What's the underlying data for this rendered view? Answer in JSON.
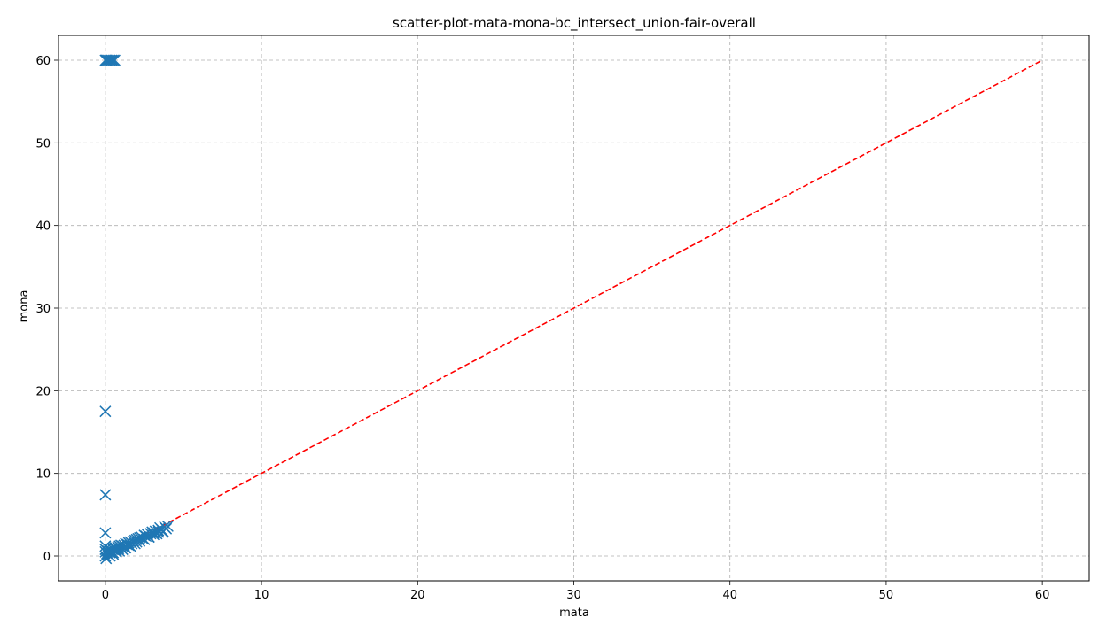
{
  "chart_data": {
    "type": "scatter",
    "title": "scatter-plot-mata-mona-bc_intersect_union-fair-overall",
    "xlabel": "mata",
    "ylabel": "mona",
    "xlim": [
      -3,
      63
    ],
    "ylim": [
      -3,
      63
    ],
    "xticks": [
      0,
      10,
      20,
      30,
      40,
      50,
      60
    ],
    "yticks": [
      0,
      10,
      20,
      30,
      40,
      50,
      60
    ],
    "grid": true,
    "marker": "x",
    "marker_color": "#1f77b4",
    "reference_line": {
      "style": "dashed",
      "color": "#ff0000",
      "x": [
        0,
        60
      ],
      "y": [
        0,
        60
      ]
    },
    "series": [
      {
        "x": [
          0.0,
          0.05,
          0.1,
          0.2,
          0.3,
          0.4,
          0.5,
          0.6,
          0.0,
          0.0,
          0.0,
          0.0,
          0.0,
          0.0,
          0.0,
          0.05,
          0.1,
          0.15,
          0.2,
          0.3,
          0.35,
          0.4,
          0.45,
          0.5,
          0.5,
          0.6,
          0.65,
          0.7,
          0.8,
          0.85,
          0.9,
          1.0,
          1.0,
          1.1,
          1.2,
          1.25,
          1.3,
          1.4,
          1.5,
          1.5,
          1.6,
          1.7,
          1.8,
          1.9,
          2.0,
          2.0,
          2.1,
          2.2,
          2.3,
          2.4,
          2.5,
          2.6,
          2.7,
          2.8,
          2.9,
          3.0,
          3.1,
          3.2,
          3.3,
          3.4,
          3.5,
          3.6,
          3.7,
          3.8,
          3.9,
          4.0,
          0.3,
          0.5,
          0.7,
          0.9,
          1.1,
          1.3,
          1.6,
          1.9,
          2.2,
          2.5,
          2.8,
          3.1,
          3.4,
          3.7
        ],
        "y": [
          60,
          60,
          60,
          60,
          60,
          60,
          60,
          60,
          17.5,
          7.4,
          2.8,
          1.2,
          0.8,
          0.5,
          0.0,
          -0.3,
          0.3,
          0.6,
          0.2,
          0.4,
          0.7,
          0.5,
          0.9,
          0.4,
          0.8,
          0.9,
          1.0,
          0.7,
          1.1,
          0.9,
          1.2,
          1.0,
          1.3,
          1.2,
          1.3,
          1.0,
          1.5,
          1.4,
          1.6,
          1.3,
          1.7,
          1.5,
          1.8,
          1.9,
          2.0,
          1.7,
          2.1,
          2.2,
          2.3,
          2.1,
          2.5,
          2.4,
          2.6,
          2.3,
          2.7,
          2.9,
          2.8,
          3.0,
          2.7,
          3.1,
          3.4,
          3.2,
          2.9,
          3.5,
          3.3,
          3.6,
          0.0,
          0.2,
          0.5,
          0.6,
          0.8,
          1.0,
          1.2,
          1.5,
          1.8,
          2.0,
          2.3,
          2.6,
          2.9,
          3.0
        ]
      }
    ]
  }
}
